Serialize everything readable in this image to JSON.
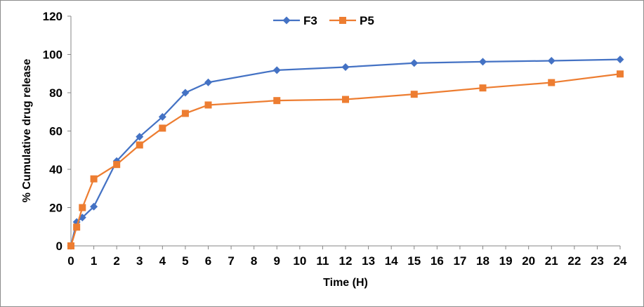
{
  "chart_data": {
    "type": "line",
    "title": "",
    "xlabel": "Time (H)",
    "ylabel": "% Cumulative drug release",
    "xlim": [
      0,
      24
    ],
    "ylim": [
      0,
      120
    ],
    "x_ticks": [
      0,
      1,
      2,
      3,
      4,
      5,
      6,
      7,
      8,
      9,
      10,
      11,
      12,
      13,
      14,
      15,
      16,
      17,
      18,
      19,
      20,
      21,
      22,
      23,
      24
    ],
    "y_ticks": [
      0,
      20,
      40,
      60,
      80,
      100,
      120
    ],
    "grid": false,
    "legend_position": "top-center",
    "series": [
      {
        "name": "F3",
        "color": "#4472C4",
        "marker": "diamond",
        "x": [
          0,
          0.25,
          0.5,
          1,
          2,
          3,
          4,
          5,
          6,
          9,
          12,
          15,
          18,
          21,
          24
        ],
        "y": [
          0,
          12.5,
          14.8,
          20.5,
          44.3,
          57.0,
          67.4,
          80.0,
          85.4,
          91.8,
          93.4,
          95.5,
          96.2,
          96.7,
          97.4
        ]
      },
      {
        "name": "P5",
        "color": "#ED7D31",
        "marker": "square",
        "x": [
          0,
          0.25,
          0.5,
          1,
          2,
          3,
          4,
          5,
          6,
          9,
          12,
          15,
          18,
          21,
          24
        ],
        "y": [
          0,
          9.8,
          20.0,
          35.0,
          42.5,
          52.7,
          61.5,
          69.2,
          73.6,
          75.9,
          76.5,
          79.2,
          82.5,
          85.3,
          89.8
        ]
      }
    ]
  }
}
